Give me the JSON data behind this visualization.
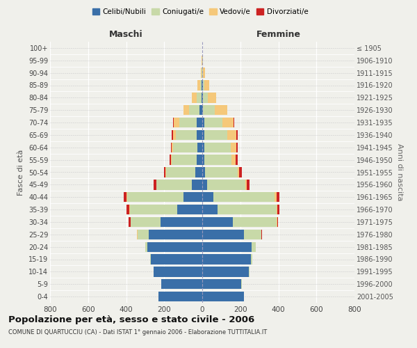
{
  "age_groups": [
    "0-4",
    "5-9",
    "10-14",
    "15-19",
    "20-24",
    "25-29",
    "30-34",
    "35-39",
    "40-44",
    "45-49",
    "50-54",
    "55-59",
    "60-64",
    "65-69",
    "70-74",
    "75-79",
    "80-84",
    "85-89",
    "90-94",
    "95-99",
    "100+"
  ],
  "birth_years": [
    "2001-2005",
    "1996-2000",
    "1991-1995",
    "1986-1990",
    "1981-1985",
    "1976-1980",
    "1971-1975",
    "1966-1970",
    "1961-1965",
    "1956-1960",
    "1951-1955",
    "1946-1950",
    "1941-1945",
    "1936-1940",
    "1931-1935",
    "1926-1930",
    "1921-1925",
    "1916-1920",
    "1911-1915",
    "1906-1910",
    "≤ 1905"
  ],
  "male": {
    "celibi": [
      230,
      215,
      255,
      270,
      290,
      280,
      220,
      130,
      100,
      55,
      35,
      30,
      25,
      30,
      30,
      15,
      5,
      2,
      1,
      0,
      0
    ],
    "coniugati": [
      0,
      1,
      2,
      5,
      10,
      60,
      155,
      250,
      295,
      185,
      155,
      130,
      130,
      110,
      90,
      55,
      25,
      8,
      3,
      1,
      0
    ],
    "vedovi": [
      0,
      0,
      0,
      0,
      0,
      2,
      2,
      2,
      2,
      2,
      2,
      3,
      5,
      15,
      30,
      30,
      25,
      15,
      5,
      2,
      0
    ],
    "divorziati": [
      0,
      0,
      0,
      0,
      1,
      3,
      10,
      15,
      15,
      15,
      10,
      10,
      5,
      5,
      2,
      0,
      0,
      0,
      0,
      0,
      0
    ]
  },
  "female": {
    "nubili": [
      220,
      205,
      245,
      255,
      260,
      220,
      160,
      80,
      60,
      25,
      15,
      10,
      10,
      10,
      10,
      5,
      3,
      2,
      1,
      1,
      0
    ],
    "coniugate": [
      1,
      2,
      3,
      8,
      20,
      90,
      230,
      310,
      320,
      200,
      170,
      145,
      140,
      120,
      95,
      60,
      25,
      10,
      3,
      1,
      0
    ],
    "vedove": [
      0,
      0,
      0,
      0,
      1,
      2,
      3,
      5,
      10,
      10,
      10,
      20,
      30,
      50,
      60,
      65,
      45,
      25,
      10,
      3,
      1
    ],
    "divorziate": [
      0,
      0,
      0,
      0,
      0,
      2,
      5,
      10,
      15,
      15,
      15,
      10,
      8,
      5,
      3,
      2,
      1,
      0,
      0,
      0,
      0
    ]
  },
  "colors": {
    "celibi": "#3a6fa8",
    "coniugati": "#c8d9a8",
    "vedovi": "#f5c87a",
    "divorziati": "#cc2222"
  },
  "xlim": 800,
  "title": "Popolazione per età, sesso e stato civile - 2006",
  "subtitle": "COMUNE DI QUARTUCCIU (CA) - Dati ISTAT 1° gennaio 2006 - Elaborazione TUTTITALIA.IT",
  "ylabel_left": "Fasce di età",
  "ylabel_right": "Anni di nascita",
  "xlabel_maschi": "Maschi",
  "xlabel_femmine": "Femmine",
  "legend_labels": [
    "Celibi/Nubili",
    "Coniugati/e",
    "Vedovi/e",
    "Divorziati/e"
  ],
  "background_color": "#f0f0eb",
  "xticks": [
    800,
    600,
    400,
    200,
    0,
    200,
    400,
    600,
    800
  ]
}
